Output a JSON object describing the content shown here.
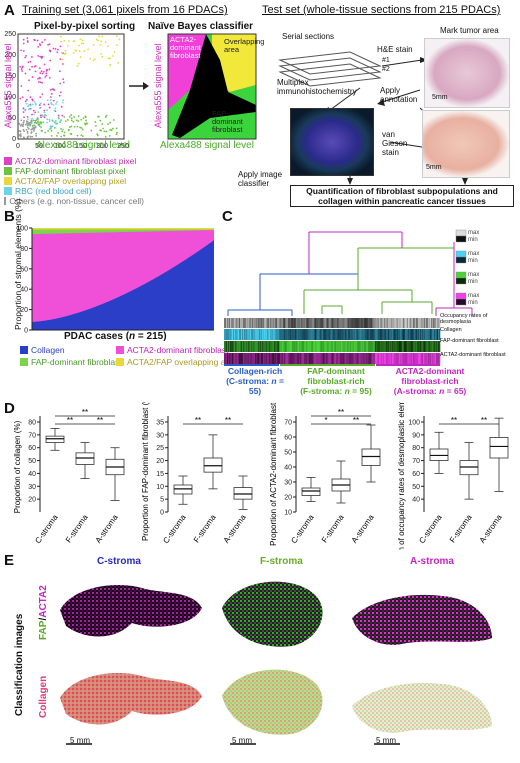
{
  "panel_a": {
    "letter": "A",
    "training_title": "Training set (3,061 pixels from 16 PDACs)",
    "test_title": "Test set (whole-tissue sections from 215 PDACs)",
    "sorting_title": "Pixel-by-pixel sorting",
    "bayes_title": "Naïve Bayes classifier",
    "x_axis": "Alexa488 signal level",
    "y_axis": "Alexa555 signal level",
    "bayes_x_axis": "Alexa488 signal level",
    "bayes_y_axis": "Alexa555 signal level",
    "region_acta2": "ACTA2-dominant fibroblast",
    "region_overlap": "Overlapping area",
    "region_fap": "FAP-dominant fibroblast",
    "legend": [
      {
        "label": "ACTA2-dominant fibroblast pixel",
        "color": "#e040c8"
      },
      {
        "label": "FAP-dominant fibroblast pixel",
        "color": "#6cc43c"
      },
      {
        "label": "ACTA2/FAP overlapping pixel",
        "color": "#e8d83a"
      },
      {
        "label": "RBC (red blood cell)",
        "color": "#6cd4ea"
      },
      {
        "label": "Others (e.g. non-tissue, cancer cell)",
        "color": "#999999"
      }
    ],
    "serial_sections": "Serial sections",
    "he_stain": "H&E stain",
    "mark_tumor": "Mark tumor area",
    "section1": "#1",
    "section2": "#2",
    "multiplex": "Multiplex immunohistochemistry",
    "apply_annotation": "Apply annotation",
    "van_gieson": "van Gieson stain",
    "apply_classifier": "Apply image classifier",
    "scale_5mm_1": "5mm",
    "scale_5mm_2": "5mm",
    "quant_box": "Quantification of fibroblast subpopulations and collagen within pancreatic cancer tissues",
    "ticks_x": [
      "0",
      "50",
      "100",
      "150",
      "200",
      "250"
    ],
    "ticks_y": [
      "0",
      "50",
      "100",
      "150",
      "200",
      "250"
    ]
  },
  "panel_b": {
    "letter": "B",
    "y_axis": "Proportion of stromal elements (%)",
    "x_axis_prefix": "PDAC cases (",
    "x_axis_n": "n",
    "x_axis_suffix": " = 215)",
    "ticks_y": [
      "0",
      "20",
      "40",
      "60",
      "80",
      "100"
    ],
    "legend": [
      {
        "label": "Collagen",
        "color": "#2a3ec8"
      },
      {
        "label": "ACTA2-dominant fibroblast",
        "color": "#f050d8"
      },
      {
        "label": "FAP-dominant fibroblast",
        "color": "#7cd44c"
      },
      {
        "label": "ACTA2/FAP overlapping area",
        "color": "#e8d83a"
      }
    ]
  },
  "panel_c": {
    "letter": "C",
    "row_labels": [
      "Occupancy rates of desmoplasia",
      "Collagen",
      "FAP-dominant fibroblast",
      "ACTA2-dominant fibroblast"
    ],
    "scale_max": [
      "max",
      "max",
      "max",
      "max"
    ],
    "scale_min": [
      "min",
      "min",
      "min",
      "min"
    ],
    "groups": [
      {
        "name": "Collagen-rich",
        "sub": "(C-stroma: ",
        "n": "n",
        "count": " = 55)",
        "color": "#2a5cc8"
      },
      {
        "name": "FAP-dominant fibroblast-rich",
        "sub": "(F-stroma: ",
        "n": "n",
        "count": " = 95)",
        "color": "#5aaa2a"
      },
      {
        "name": "ACTA2-dominant fibroblast-rich",
        "sub": "(A-stroma: ",
        "n": "n",
        "count": " = 65)",
        "color": "#c028c0"
      }
    ]
  },
  "panel_d": {
    "letter": "D",
    "categories": [
      "C-stroma",
      "F-stroma",
      "A-stroma"
    ],
    "sig": "**",
    "sig_single": "*"
  },
  "chart_data": [
    {
      "type": "box",
      "ylabel": "Proportion of collagen (%)",
      "categories": [
        "C-stroma",
        "F-stroma",
        "A-stroma"
      ],
      "ylim": [
        10,
        80
      ],
      "ticks": [
        20,
        30,
        40,
        50,
        60,
        70,
        80
      ],
      "boxes": [
        {
          "min": 58,
          "q1": 64,
          "median": 67,
          "q3": 69,
          "max": 75
        },
        {
          "min": 36,
          "q1": 47,
          "median": 52,
          "q3": 56,
          "max": 64
        },
        {
          "min": 19,
          "q1": 39,
          "median": 45,
          "q3": 51,
          "max": 60
        }
      ],
      "significance": [
        [
          "C-stroma",
          "F-stroma",
          "**"
        ],
        [
          "F-stroma",
          "A-stroma",
          "**"
        ],
        [
          "C-stroma",
          "A-stroma",
          "**"
        ]
      ]
    },
    {
      "type": "box",
      "ylabel": "Proportion of FAP-dominant fibroblast (%)",
      "categories": [
        "C-stroma",
        "F-stroma",
        "A-stroma"
      ],
      "ylim": [
        0,
        35
      ],
      "ticks": [
        0,
        5,
        10,
        15,
        20,
        25,
        30,
        35
      ],
      "boxes": [
        {
          "min": 3,
          "q1": 7,
          "median": 9,
          "q3": 10.5,
          "max": 14
        },
        {
          "min": 9,
          "q1": 15.5,
          "median": 18,
          "q3": 21,
          "max": 30
        },
        {
          "min": 1,
          "q1": 5,
          "median": 7,
          "q3": 9.5,
          "max": 14
        }
      ],
      "significance": [
        [
          "C-stroma",
          "F-stroma",
          "**"
        ],
        [
          "F-stroma",
          "A-stroma",
          "**"
        ]
      ]
    },
    {
      "type": "box",
      "ylabel": "Proportion of ACTA2-dominant fibroblast (%)",
      "categories": [
        "C-stroma",
        "F-stroma",
        "A-stroma"
      ],
      "ylim": [
        10,
        70
      ],
      "ticks": [
        10,
        20,
        30,
        40,
        50,
        60,
        70
      ],
      "boxes": [
        {
          "min": 17,
          "q1": 21,
          "median": 24,
          "q3": 26,
          "max": 33
        },
        {
          "min": 16,
          "q1": 24,
          "median": 28,
          "q3": 32,
          "max": 44
        },
        {
          "min": 30,
          "q1": 41,
          "median": 47,
          "q3": 52,
          "max": 68
        }
      ],
      "significance": [
        [
          "C-stroma",
          "F-stroma",
          "*"
        ],
        [
          "F-stroma",
          "A-stroma",
          "**"
        ],
        [
          "C-stroma",
          "A-stroma",
          "**"
        ]
      ]
    },
    {
      "type": "box",
      "ylabel": "Sum of occupancy rates of desmoplastic elements (%)",
      "categories": [
        "C-stroma",
        "F-stroma",
        "A-stroma"
      ],
      "ylim": [
        30,
        100
      ],
      "ticks": [
        40,
        50,
        60,
        70,
        80,
        90,
        100
      ],
      "boxes": [
        {
          "min": 60,
          "q1": 70,
          "median": 74,
          "q3": 79,
          "max": 92
        },
        {
          "min": 40,
          "q1": 59,
          "median": 65,
          "q3": 70,
          "max": 84
        },
        {
          "min": 46,
          "q1": 72,
          "median": 81,
          "q3": 88,
          "max": 103
        }
      ],
      "significance": [
        [
          "C-stroma",
          "F-stroma",
          "**"
        ],
        [
          "F-stroma",
          "A-stroma",
          "**"
        ]
      ]
    },
    {
      "type": "area",
      "x_label": "PDAC cases (n = 215)",
      "ylabel": "Proportion of stromal elements (%)",
      "ylim": [
        0,
        100
      ],
      "n_cases": 215,
      "series": [
        {
          "name": "Collagen",
          "values_start": 8,
          "values_end": 88
        },
        {
          "name": "ACTA2-dominant fibroblast",
          "values_start": 84,
          "values_end": 9
        },
        {
          "name": "FAP-dominant fibroblast",
          "values_start": 6,
          "values_end": 2
        },
        {
          "name": "ACTA2/FAP overlapping area",
          "values_start": 2,
          "values_end": 1
        }
      ]
    }
  ],
  "panel_e": {
    "letter": "E",
    "columns": [
      "C-stroma",
      "F-stroma",
      "A-stroma"
    ],
    "column_colors": [
      "#2a2ab8",
      "#6aaa2a",
      "#c028c0"
    ],
    "side_label": "Classification images",
    "row1_fap": "FAP",
    "row1_slash": "/",
    "row1_acta2": "ACTA2",
    "row2": "Collagen",
    "scales": [
      "5 mm",
      "5 mm",
      "5 mm"
    ]
  }
}
